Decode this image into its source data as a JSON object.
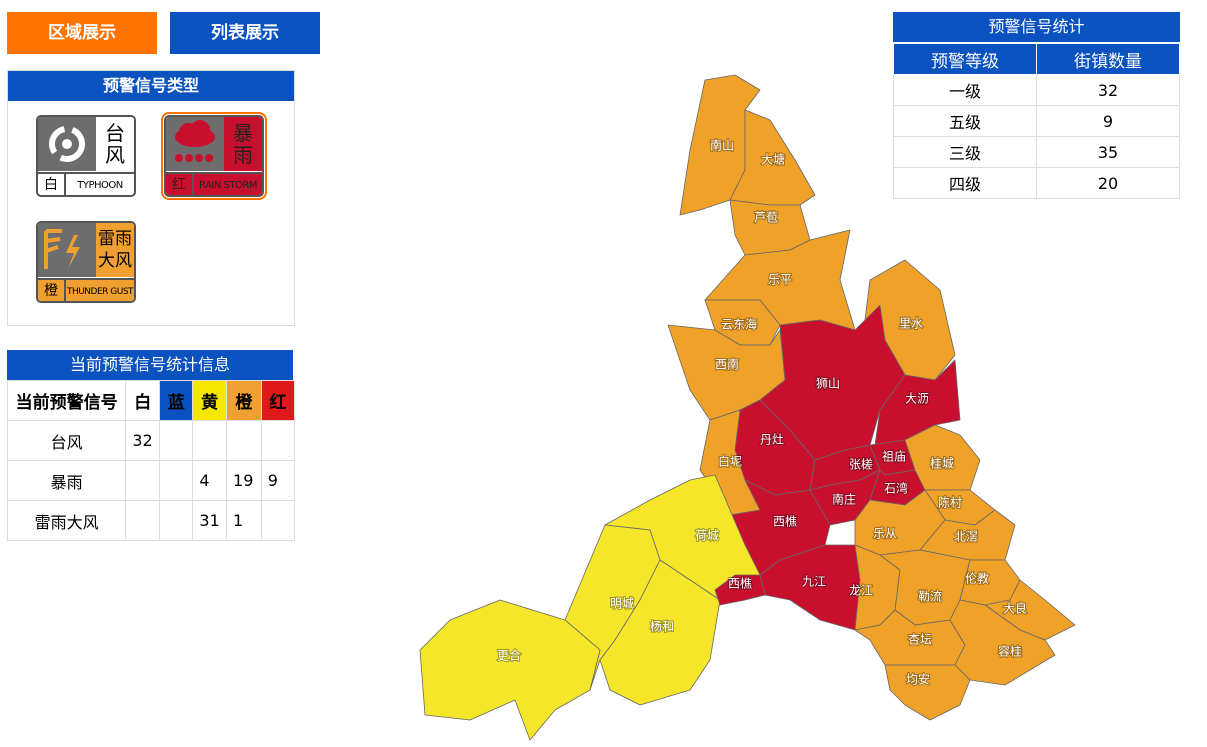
{
  "tabs": [
    "区域展示",
    "列表展示"
  ],
  "signal_types": {
    "title": "预警信号类型",
    "icons": [
      {
        "title": "台风",
        "level": "白",
        "english": "TYPHOON"
      },
      {
        "title": "暴雨",
        "level": "红",
        "english": "RAIN STORM"
      },
      {
        "title": "雷雨大风",
        "level": "橙",
        "english": "THUNDER GUST"
      }
    ]
  },
  "current_stats": {
    "title": "当前预警信号统计信息",
    "header": [
      "当前预警信号",
      "白",
      "蓝",
      "黄",
      "橙",
      "红"
    ],
    "header_colors": [
      "#ffffff",
      "#ffffff",
      "#0a52bf",
      "#f5e700",
      "#f0a030",
      "#e01a1a"
    ],
    "rows": [
      [
        "台风",
        32,
        null,
        null,
        null,
        null
      ],
      [
        "暴雨",
        null,
        null,
        4,
        19,
        9
      ],
      [
        "雷雨大风",
        null,
        null,
        31,
        1,
        null
      ]
    ]
  },
  "level_stats": {
    "title": "预警信号统计",
    "header": [
      "预警等级",
      "街镇数量"
    ],
    "rows": [
      [
        "一级",
        32
      ],
      [
        "五级",
        9
      ],
      [
        "三级",
        35
      ],
      [
        "四级",
        20
      ]
    ]
  },
  "map": {
    "regions": [
      {
        "name": "南山",
        "color": "#efa128"
      },
      {
        "name": "大塘",
        "color": "#efa128"
      },
      {
        "name": "芦苞",
        "color": "#efa128"
      },
      {
        "name": "乐平",
        "color": "#efa128"
      },
      {
        "name": "云东海",
        "color": "#efa128"
      },
      {
        "name": "西南",
        "color": "#efa128"
      },
      {
        "name": "里水",
        "color": "#efa128"
      },
      {
        "name": "狮山",
        "color": "#c8102e"
      },
      {
        "name": "大沥",
        "color": "#c8102e"
      },
      {
        "name": "丹灶",
        "color": "#c8102e"
      },
      {
        "name": "白坭",
        "color": "#efa128"
      },
      {
        "name": "张槎",
        "color": "#c8102e"
      },
      {
        "name": "祖庙",
        "color": "#c8102e"
      },
      {
        "name": "石湾",
        "color": "#c8102e"
      },
      {
        "name": "南庄",
        "color": "#c8102e"
      },
      {
        "name": "桂城",
        "color": "#efa128"
      },
      {
        "name": "陈村",
        "color": "#efa128"
      },
      {
        "name": "西樵",
        "color": "#c8102e"
      },
      {
        "name": "乐从",
        "color": "#efa128"
      },
      {
        "name": "北滘",
        "color": "#efa128"
      },
      {
        "name": "九江",
        "color": "#c8102e"
      },
      {
        "name": "龙江",
        "color": "#efa128"
      },
      {
        "name": "勒流",
        "color": "#efa128"
      },
      {
        "name": "伦教",
        "color": "#efa128"
      },
      {
        "name": "大良",
        "color": "#efa128"
      },
      {
        "name": "杏坛",
        "color": "#efa128"
      },
      {
        "name": "容桂",
        "color": "#efa128"
      },
      {
        "name": "均安",
        "color": "#efa128"
      },
      {
        "name": "荷城",
        "color": "#f5e629"
      },
      {
        "name": "明城",
        "color": "#f5e629"
      },
      {
        "name": "杨和",
        "color": "#f5e629"
      },
      {
        "name": "更合",
        "color": "#f5e629"
      },
      {
        "name": "西樵",
        "color": "#c8102e"
      }
    ]
  }
}
